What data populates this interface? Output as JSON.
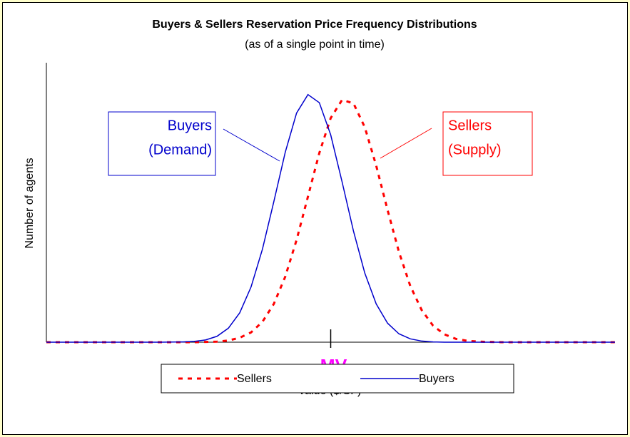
{
  "chart_data": {
    "type": "line",
    "title": "Buyers & Sellers Reservation Price Frequency Distributions",
    "subtitle": "(as of a single point in time)",
    "xlabel": "Value ($/SF)",
    "ylabel": "Number of agents",
    "x": [
      0,
      10,
      20,
      24,
      26,
      28,
      30,
      32,
      34,
      36,
      38,
      40,
      42,
      44,
      46,
      48,
      50,
      52,
      54,
      56,
      58,
      60,
      62,
      64,
      66,
      68,
      70,
      72,
      74,
      76,
      80,
      90,
      100
    ],
    "series": [
      {
        "name": "Sellers",
        "color": "#ff0000",
        "dashed": true,
        "values": [
          0,
          0,
          0,
          0,
          0,
          0.1,
          0.2,
          0.6,
          1.6,
          3.5,
          7.3,
          13.7,
          23.4,
          36.6,
          52.1,
          67.7,
          80.2,
          86.7,
          85.5,
          76.9,
          63.2,
          47.3,
          32.3,
          20.1,
          11.5,
          5.9,
          2.8,
          1.2,
          0.5,
          0.2,
          0,
          0,
          0
        ]
      },
      {
        "name": "Buyers",
        "color": "#0000cc",
        "dashed": false,
        "values": [
          0,
          0,
          0,
          0.1,
          0.3,
          0.8,
          2.1,
          5.0,
          10.5,
          19.8,
          33.3,
          50.3,
          67.9,
          82.0,
          88.6,
          85.7,
          74.2,
          57.4,
          39.8,
          24.7,
          13.7,
          6.8,
          3.0,
          1.2,
          0.4,
          0.1,
          0,
          0,
          0,
          0,
          0,
          0,
          0
        ]
      }
    ],
    "xlim": [
      0,
      100
    ],
    "ylim": [
      0,
      100
    ],
    "mv": {
      "label": "MV",
      "x": 50
    },
    "annotations": [
      {
        "lines": [
          "Buyers",
          "(Demand)"
        ],
        "color": "#0000cc"
      },
      {
        "lines": [
          "Sellers",
          "(Supply)"
        ],
        "color": "#ff0000"
      }
    ],
    "legend": "bottom"
  }
}
